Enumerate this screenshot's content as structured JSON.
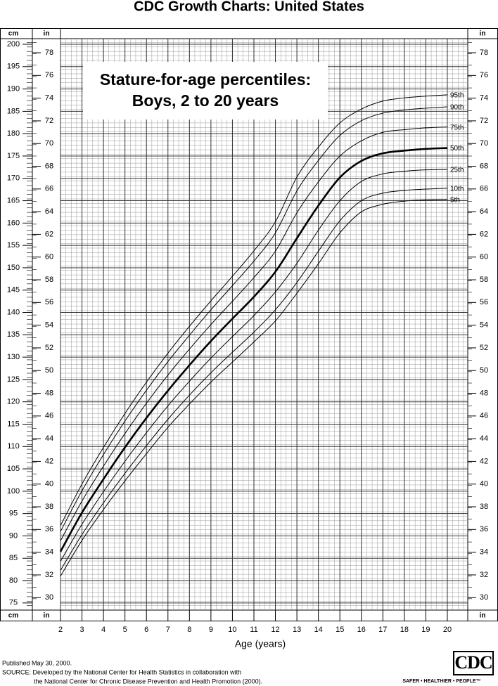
{
  "chart_data": {
    "type": "line",
    "title": "CDC Growth Charts: United States",
    "subtitle": [
      "Stature-for-age percentiles:",
      "Boys, 2 to 20 years"
    ],
    "xlabel": "Age (years)",
    "ylabel": "cm",
    "y2label": "in",
    "x": [
      2,
      3,
      4,
      5,
      6,
      7,
      8,
      9,
      10,
      11,
      12,
      13,
      14,
      15,
      16,
      17,
      18,
      19,
      20
    ],
    "xlim": [
      2,
      20.95
    ],
    "xticks": [
      2,
      3,
      4,
      5,
      6,
      7,
      8,
      9,
      10,
      11,
      12,
      13,
      14,
      15,
      16,
      17,
      18,
      19,
      20
    ],
    "ylim": [
      73.4,
      201.26
    ],
    "yticks": [
      75,
      80,
      85,
      90,
      95,
      100,
      105,
      110,
      115,
      120,
      125,
      130,
      135,
      140,
      145,
      150,
      155,
      160,
      165,
      170,
      175,
      180,
      185,
      190,
      195,
      200
    ],
    "y2lim": [
      28.9,
      79.24
    ],
    "y2ticks": [
      30,
      32,
      34,
      36,
      38,
      40,
      42,
      44,
      46,
      48,
      50,
      52,
      54,
      56,
      58,
      60,
      62,
      64,
      66,
      68,
      70,
      72,
      74,
      76,
      78
    ],
    "grid": true,
    "series": [
      {
        "name": "95th",
        "color": "#000000",
        "width": 1,
        "values": [
          92.3,
          101.6,
          109.8,
          117.4,
          124.4,
          130.9,
          136.9,
          142.6,
          148.1,
          153.8,
          160.3,
          170.3,
          177.0,
          182.4,
          185.5,
          187.3,
          188.0,
          188.4,
          188.7
        ]
      },
      {
        "name": "90th",
        "color": "#000000",
        "width": 1,
        "values": [
          91.0,
          100.1,
          108.2,
          115.7,
          122.6,
          129.0,
          134.9,
          140.6,
          146.0,
          151.5,
          157.8,
          167.2,
          174.0,
          179.6,
          182.9,
          184.6,
          185.3,
          185.7,
          186.0
        ]
      },
      {
        "name": "75th",
        "color": "#000000",
        "width": 1,
        "values": [
          88.9,
          97.8,
          105.6,
          112.9,
          119.7,
          126.0,
          131.8,
          137.3,
          142.5,
          147.8,
          153.7,
          162.3,
          169.2,
          175.0,
          178.4,
          180.3,
          180.9,
          181.3,
          181.5
        ]
      },
      {
        "name": "50th",
        "color": "#000000",
        "width": 2.6,
        "values": [
          86.5,
          95.2,
          102.7,
          109.8,
          116.4,
          122.5,
          128.2,
          133.6,
          138.6,
          143.5,
          149.1,
          156.6,
          163.9,
          170.2,
          173.9,
          175.6,
          176.2,
          176.6,
          176.8
        ]
      },
      {
        "name": "25th",
        "color": "#000000",
        "width": 1,
        "values": [
          84.3,
          92.6,
          99.9,
          106.7,
          113.1,
          119.1,
          124.6,
          129.8,
          134.6,
          139.3,
          144.6,
          151.0,
          158.4,
          165.0,
          169.3,
          171.0,
          171.6,
          171.9,
          172.0
        ]
      },
      {
        "name": "10th",
        "color": "#000000",
        "width": 1,
        "values": [
          82.3,
          90.3,
          97.4,
          104.0,
          110.2,
          116.1,
          121.5,
          126.5,
          131.1,
          135.6,
          140.6,
          146.7,
          153.7,
          160.5,
          165.0,
          166.7,
          167.3,
          167.6,
          167.8
        ]
      },
      {
        "name": "5th",
        "color": "#000000",
        "width": 1,
        "values": [
          81.0,
          89.0,
          95.9,
          102.3,
          108.4,
          114.3,
          119.5,
          124.4,
          128.9,
          133.4,
          138.1,
          144.3,
          150.9,
          157.8,
          162.5,
          164.2,
          164.9,
          165.2,
          165.3
        ]
      }
    ]
  },
  "footer": {
    "notes": [
      "Published May 30, 2000.",
      "SOURCE: Developed by the National Center for Health Statistics in collaboration with",
      "the National Center for Chronic Disease Prevention and Health Promotion (2000)."
    ],
    "logo": "CDC",
    "tagline": "SAFER • HEALTHIER • PEOPLE™"
  }
}
